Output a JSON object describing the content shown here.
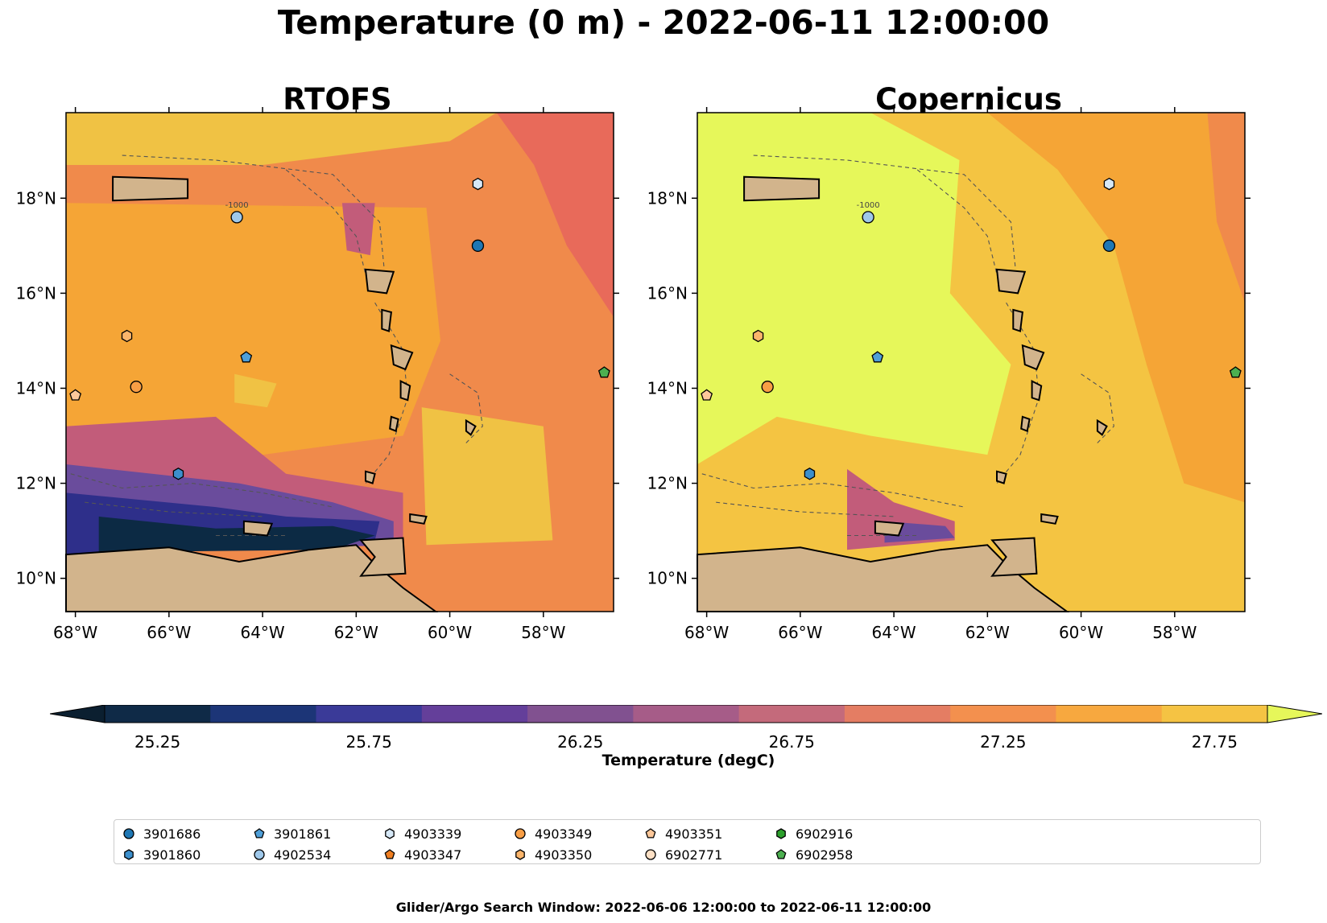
{
  "figure": {
    "title": "Temperature (0 m) - 2022-06-11 12:00:00",
    "footer": "Glider/Argo Search Window: 2022-06-06 12:00:00 to 2022-06-11 12:00:00"
  },
  "maps": [
    {
      "title": "RTOFS",
      "background": "#f08a4b",
      "zone_colors": [
        "#f5a536",
        "#f0c244",
        "#e86a5a",
        "#c25c7a",
        "#6a4c9c",
        "#2e2f8a",
        "#0c2a44"
      ]
    },
    {
      "title": "Copernicus",
      "background": "#f4c442",
      "zone_colors": [
        "#e6f75a",
        "#f5a536",
        "#f08a4b",
        "#c25c7a",
        "#6a4c9c"
      ]
    }
  ],
  "axes": {
    "lon_ticks": [
      "68°W",
      "66°W",
      "64°W",
      "62°W",
      "60°W",
      "58°W"
    ],
    "lat_ticks": [
      "18°N",
      "16°N",
      "14°N",
      "12°N",
      "10°N"
    ],
    "lon_range": [
      -68.2,
      -56.5
    ],
    "lat_range": [
      9.3,
      19.8
    ],
    "contour_label": "-1000"
  },
  "colorbar": {
    "label": "Temperature (degC)",
    "ticks": [
      "25.25",
      "25.75",
      "26.25",
      "26.75",
      "27.25",
      "27.75"
    ],
    "bins": [
      "#0f2a47",
      "#1c3577",
      "#3a3a98",
      "#643f9a",
      "#815190",
      "#a65c88",
      "#c46a7b",
      "#e47d63",
      "#f3904e",
      "#f7a83f",
      "#f5c343"
    ],
    "under_color": "#0b1f30",
    "over_color": "#e6f75a"
  },
  "land_color": "#d2b48c",
  "floats": [
    {
      "id": "3901686",
      "marker": "circle",
      "color": "#1f77b4",
      "lon": -59.4,
      "lat": 17.0
    },
    {
      "id": "3901860",
      "marker": "hexagon",
      "color": "#3c8fcc",
      "lon": -65.8,
      "lat": 12.2
    },
    {
      "id": "3901861",
      "marker": "pentagon",
      "color": "#4f9fd8",
      "lon": -64.35,
      "lat": 14.65
    },
    {
      "id": "4902534",
      "marker": "circle",
      "color": "#9fc8ea",
      "lon": -64.55,
      "lat": 17.6
    },
    {
      "id": "4903339",
      "marker": "hexagon",
      "color": "#d6e8f7",
      "lon": -59.4,
      "lat": 18.3
    },
    {
      "id": "4903347",
      "marker": "pentagon",
      "color": "#f07f22",
      "lon": null,
      "lat": null
    },
    {
      "id": "4903349",
      "marker": "circle",
      "color": "#f89e45",
      "lon": -66.7,
      "lat": 14.03
    },
    {
      "id": "4903350",
      "marker": "hexagon",
      "color": "#fbb56b",
      "lon": -66.9,
      "lat": 15.1
    },
    {
      "id": "4903351",
      "marker": "pentagon",
      "color": "#fdc89a",
      "lon": -68.0,
      "lat": 13.85
    },
    {
      "id": "6902771",
      "marker": "circle",
      "color": "#fde0c5",
      "lon": null,
      "lat": null
    },
    {
      "id": "6902916",
      "marker": "hexagon",
      "color": "#2ca02c",
      "lon": null,
      "lat": null
    },
    {
      "id": "6902958",
      "marker": "pentagon",
      "color": "#4caf50",
      "lon": -56.7,
      "lat": 14.33
    }
  ]
}
